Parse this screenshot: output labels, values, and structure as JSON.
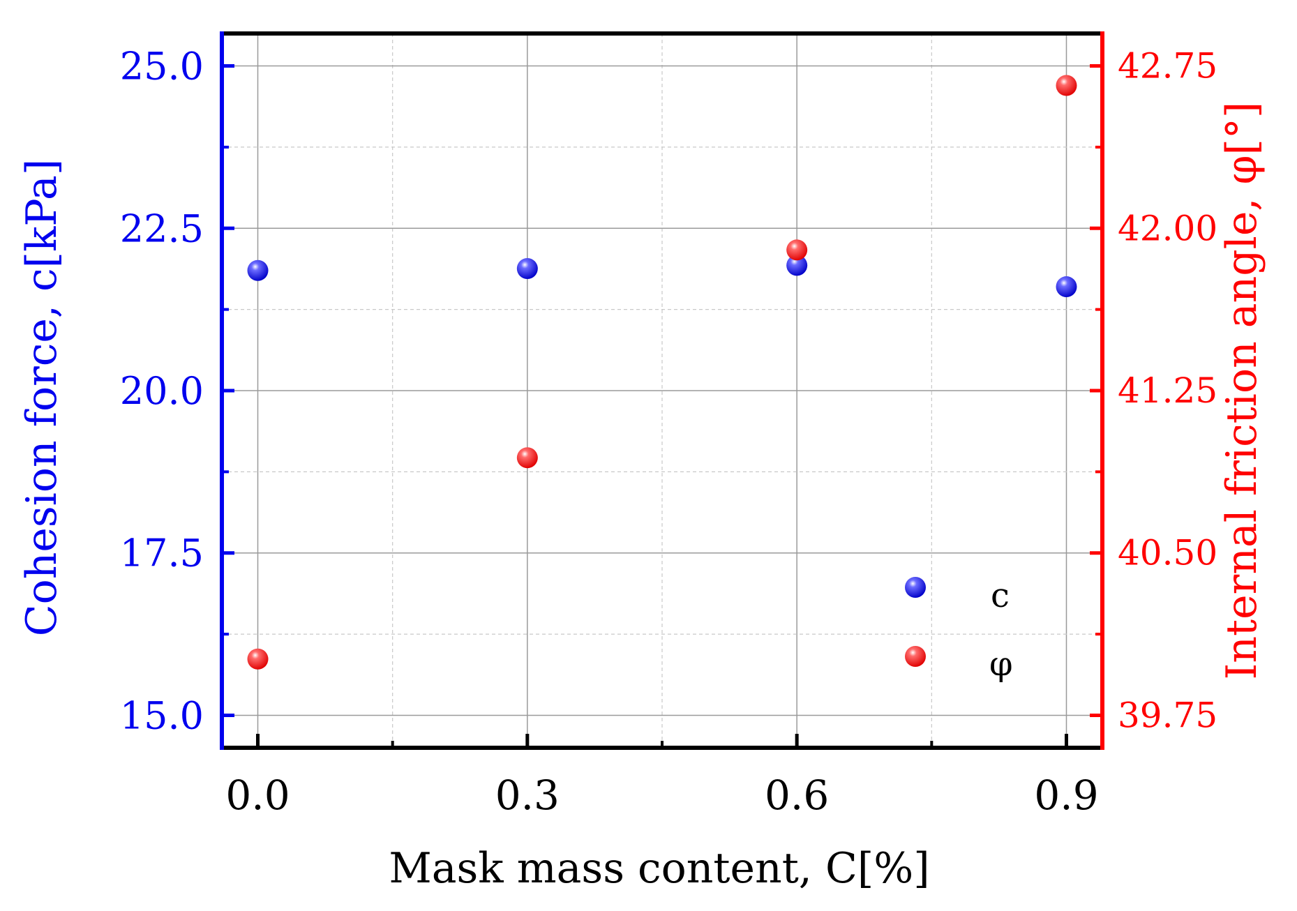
{
  "chart_data": {
    "type": "scatter",
    "x_title": "Mask mass content, C[%]",
    "y_left_title": "Cohesion force, c[kPa]",
    "y_right_title": "Internal friction angle, φ[°]",
    "x_ticks": [
      "0.0",
      "0.3",
      "0.6",
      "0.9"
    ],
    "x_values": [
      0.0,
      0.3,
      0.6,
      0.9
    ],
    "xlim": [
      -0.04,
      0.94
    ],
    "y_left_ticks": [
      "15.0",
      "17.5",
      "20.0",
      "22.5",
      "25.0"
    ],
    "y_left_tick_values": [
      15.0,
      17.5,
      20.0,
      22.5,
      25.0
    ],
    "y_left_lim": [
      14.5,
      25.5
    ],
    "y_right_ticks": [
      "39.75",
      "40.50",
      "41.25",
      "42.00",
      "42.75"
    ],
    "y_right_tick_values": [
      39.75,
      40.5,
      41.25,
      42.0,
      42.75
    ],
    "y_right_lim": [
      39.6,
      42.9
    ],
    "grid": true,
    "legend_position": "bottom-right",
    "series": [
      {
        "name": "c",
        "axis": "left",
        "color": "#0000ee",
        "x": [
          0.0,
          0.3,
          0.6,
          0.9
        ],
        "y": [
          21.85,
          21.88,
          21.93,
          21.6
        ]
      },
      {
        "name": "φ",
        "axis": "right",
        "color": "#ff0000",
        "x": [
          0.0,
          0.3,
          0.6,
          0.9
        ],
        "y": [
          40.01,
          40.94,
          41.9,
          42.66
        ]
      }
    ]
  },
  "colors": {
    "left_axis": "#0000ee",
    "right_axis": "#ff0000",
    "frame": "#000000",
    "grid": "#9a9a9a"
  }
}
